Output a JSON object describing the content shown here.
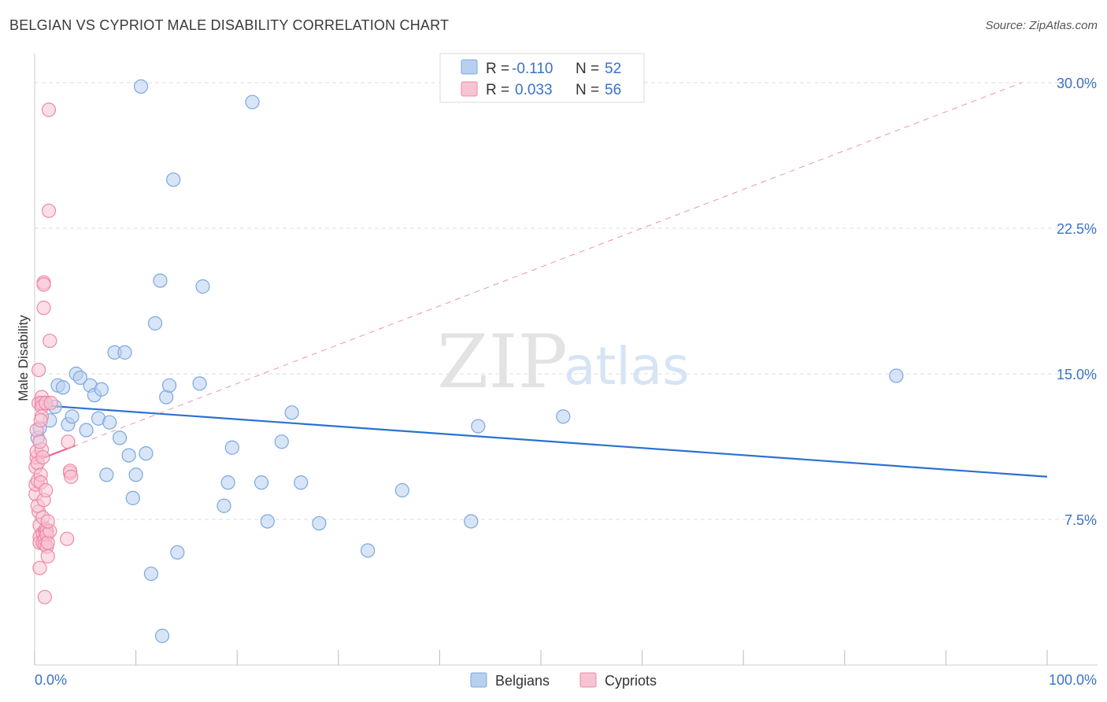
{
  "title": "BELGIAN VS CYPRIOT MALE DISABILITY CORRELATION CHART",
  "source": "Source: ZipAtlas.com",
  "watermark": {
    "zip": "ZIP",
    "atlas": "atlas"
  },
  "colors": {
    "belgian_fill": "#b8d0f0",
    "belgian_stroke": "#7aa7e0",
    "belgian_line": "#2a72d0",
    "cypriot_fill": "#f8c4d4",
    "cypriot_stroke": "#ee88a8",
    "cypriot_line": "#e8648e",
    "value_text": "#3a72c8",
    "grid": "#dddddd"
  },
  "legend_box": {
    "rows": [
      {
        "r_label": "R =",
        "r_value": "-0.110",
        "n_label": "N =",
        "n_value": "52",
        "series": "belgians"
      },
      {
        "r_label": "R =",
        "r_value": "0.033",
        "n_label": "N =",
        "n_value": "56",
        "series": "cypriots"
      }
    ]
  },
  "bottom_legend": [
    {
      "label": "Belgians"
    },
    {
      "label": "Cypriots"
    }
  ],
  "chart_data": {
    "type": "scatter",
    "title": "BELGIAN VS CYPRIOT MALE DISABILITY CORRELATION CHART",
    "xlabel": "",
    "ylabel": "Male Disability",
    "xlim": [
      0,
      100
    ],
    "ylim": [
      0,
      31.5
    ],
    "x_tick_labels": [
      {
        "value": 0,
        "label": "0.0%"
      },
      {
        "value": 100,
        "label": "100.0%"
      }
    ],
    "y_ticks": [
      {
        "value": 7.5,
        "label": "7.5%"
      },
      {
        "value": 15.0,
        "label": "15.0%"
      },
      {
        "value": 22.5,
        "label": "22.5%"
      },
      {
        "value": 30.0,
        "label": "30.0%"
      }
    ],
    "series": [
      {
        "name": "Belgians",
        "r": -0.11,
        "n": 52,
        "trend": {
          "x": [
            0,
            100
          ],
          "y": [
            13.4,
            9.7
          ],
          "style": "solid"
        },
        "points": [
          [
            0.3,
            11.7
          ],
          [
            0.5,
            12.2
          ],
          [
            1.0,
            13.5
          ],
          [
            1.5,
            12.6
          ],
          [
            2.0,
            13.3
          ],
          [
            2.3,
            14.4
          ],
          [
            2.8,
            14.3
          ],
          [
            3.3,
            12.4
          ],
          [
            3.7,
            12.8
          ],
          [
            4.1,
            15.0
          ],
          [
            4.5,
            14.8
          ],
          [
            5.1,
            12.1
          ],
          [
            5.5,
            14.4
          ],
          [
            5.9,
            13.9
          ],
          [
            6.3,
            12.7
          ],
          [
            6.6,
            14.2
          ],
          [
            7.1,
            9.8
          ],
          [
            7.4,
            12.5
          ],
          [
            7.9,
            16.1
          ],
          [
            8.4,
            11.7
          ],
          [
            8.9,
            16.1
          ],
          [
            9.3,
            10.8
          ],
          [
            9.7,
            8.6
          ],
          [
            10.0,
            9.8
          ],
          [
            10.5,
            29.8
          ],
          [
            11.0,
            10.9
          ],
          [
            11.5,
            4.7
          ],
          [
            11.9,
            17.6
          ],
          [
            12.4,
            19.8
          ],
          [
            12.6,
            1.5
          ],
          [
            13.0,
            13.8
          ],
          [
            13.3,
            14.4
          ],
          [
            13.7,
            25.0
          ],
          [
            14.1,
            5.8
          ],
          [
            16.3,
            14.5
          ],
          [
            16.6,
            19.5
          ],
          [
            18.7,
            8.2
          ],
          [
            19.1,
            9.4
          ],
          [
            19.5,
            11.2
          ],
          [
            21.5,
            29.0
          ],
          [
            22.4,
            9.4
          ],
          [
            23.0,
            7.4
          ],
          [
            24.4,
            11.5
          ],
          [
            25.4,
            13.0
          ],
          [
            26.3,
            9.4
          ],
          [
            28.1,
            7.3
          ],
          [
            32.9,
            5.9
          ],
          [
            36.3,
            9.0
          ],
          [
            43.1,
            7.4
          ],
          [
            43.8,
            12.3
          ],
          [
            52.2,
            12.8
          ],
          [
            85.1,
            14.9
          ]
        ]
      },
      {
        "name": "Cypriots",
        "r": 0.033,
        "n": 56,
        "trend": {
          "x": [
            0,
            4
          ],
          "y": [
            10.5,
            11.3
          ],
          "style": "solid",
          "extended": {
            "x": [
              0,
              97.5
            ],
            "y": [
              10.5,
              30.0
            ],
            "style": "dashed"
          }
        },
        "points": [
          [
            0.1,
            8.8
          ],
          [
            0.1,
            9.3
          ],
          [
            0.1,
            10.2
          ],
          [
            0.2,
            10.7
          ],
          [
            0.2,
            11.0
          ],
          [
            0.3,
            9.5
          ],
          [
            0.3,
            10.4
          ],
          [
            0.4,
            15.2
          ],
          [
            0.4,
            13.5
          ],
          [
            0.4,
            7.9
          ],
          [
            0.5,
            6.6
          ],
          [
            0.5,
            7.2
          ],
          [
            0.5,
            6.3
          ],
          [
            0.5,
            5.0
          ],
          [
            0.6,
            9.8
          ],
          [
            0.6,
            9.4
          ],
          [
            0.7,
            13.8
          ],
          [
            0.7,
            13.5
          ],
          [
            0.7,
            13.3
          ],
          [
            0.7,
            12.8
          ],
          [
            0.7,
            11.1
          ],
          [
            0.8,
            10.7
          ],
          [
            0.8,
            7.6
          ],
          [
            0.8,
            6.8
          ],
          [
            0.8,
            6.3
          ],
          [
            0.9,
            19.7
          ],
          [
            0.9,
            19.6
          ],
          [
            0.9,
            18.4
          ],
          [
            1.0,
            6.9
          ],
          [
            1.0,
            6.5
          ],
          [
            1.0,
            6.2
          ],
          [
            1.0,
            3.5
          ],
          [
            1.1,
            13.5
          ],
          [
            1.1,
            7.0
          ],
          [
            1.2,
            6.9
          ],
          [
            1.2,
            6.7
          ],
          [
            1.2,
            6.1
          ],
          [
            1.3,
            6.3
          ],
          [
            1.3,
            5.6
          ],
          [
            1.4,
            28.6
          ],
          [
            1.4,
            23.4
          ],
          [
            1.5,
            16.7
          ],
          [
            1.5,
            6.9
          ],
          [
            1.6,
            13.5
          ],
          [
            3.2,
            6.5
          ],
          [
            3.3,
            11.5
          ],
          [
            3.5,
            9.9
          ],
          [
            3.5,
            10.0
          ],
          [
            3.6,
            9.7
          ],
          [
            0.2,
            12.1
          ],
          [
            0.3,
            8.2
          ],
          [
            0.5,
            11.5
          ],
          [
            0.6,
            12.6
          ],
          [
            0.9,
            8.5
          ],
          [
            1.1,
            9.0
          ],
          [
            1.3,
            7.4
          ]
        ]
      }
    ],
    "legend": "top-center and bottom-center"
  }
}
